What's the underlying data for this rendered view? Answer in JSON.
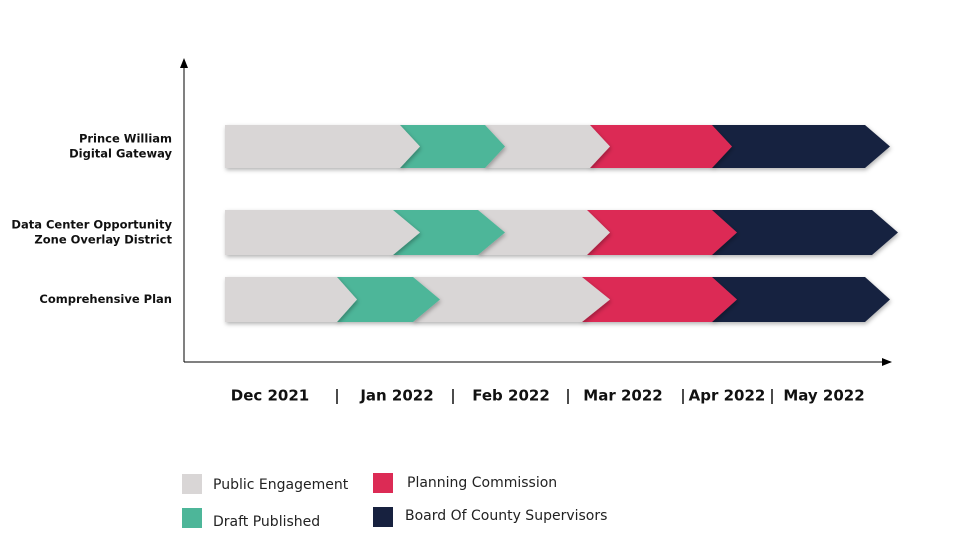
{
  "rows": [
    {
      "label": [
        "Prince William",
        "Digital Gateway"
      ]
    },
    {
      "label": [
        "Data Center Opportunity",
        "Zone Overlay District"
      ]
    },
    {
      "label": [
        "Comprehensive Plan"
      ]
    }
  ],
  "months": [
    "Dec 2021",
    "Jan 2022",
    "Feb 2022",
    "Mar 2022",
    "Apr 2022",
    "May 2022"
  ],
  "legend": [
    {
      "name": "Public Engagement",
      "color": "#d9d6d6"
    },
    {
      "name": "Draft Published",
      "color": "#4db699"
    },
    {
      "name": "Planning Commission",
      "color": "#dc2b55"
    },
    {
      "name": "Board Of County Supervisors",
      "color": "#17213f"
    }
  ]
}
